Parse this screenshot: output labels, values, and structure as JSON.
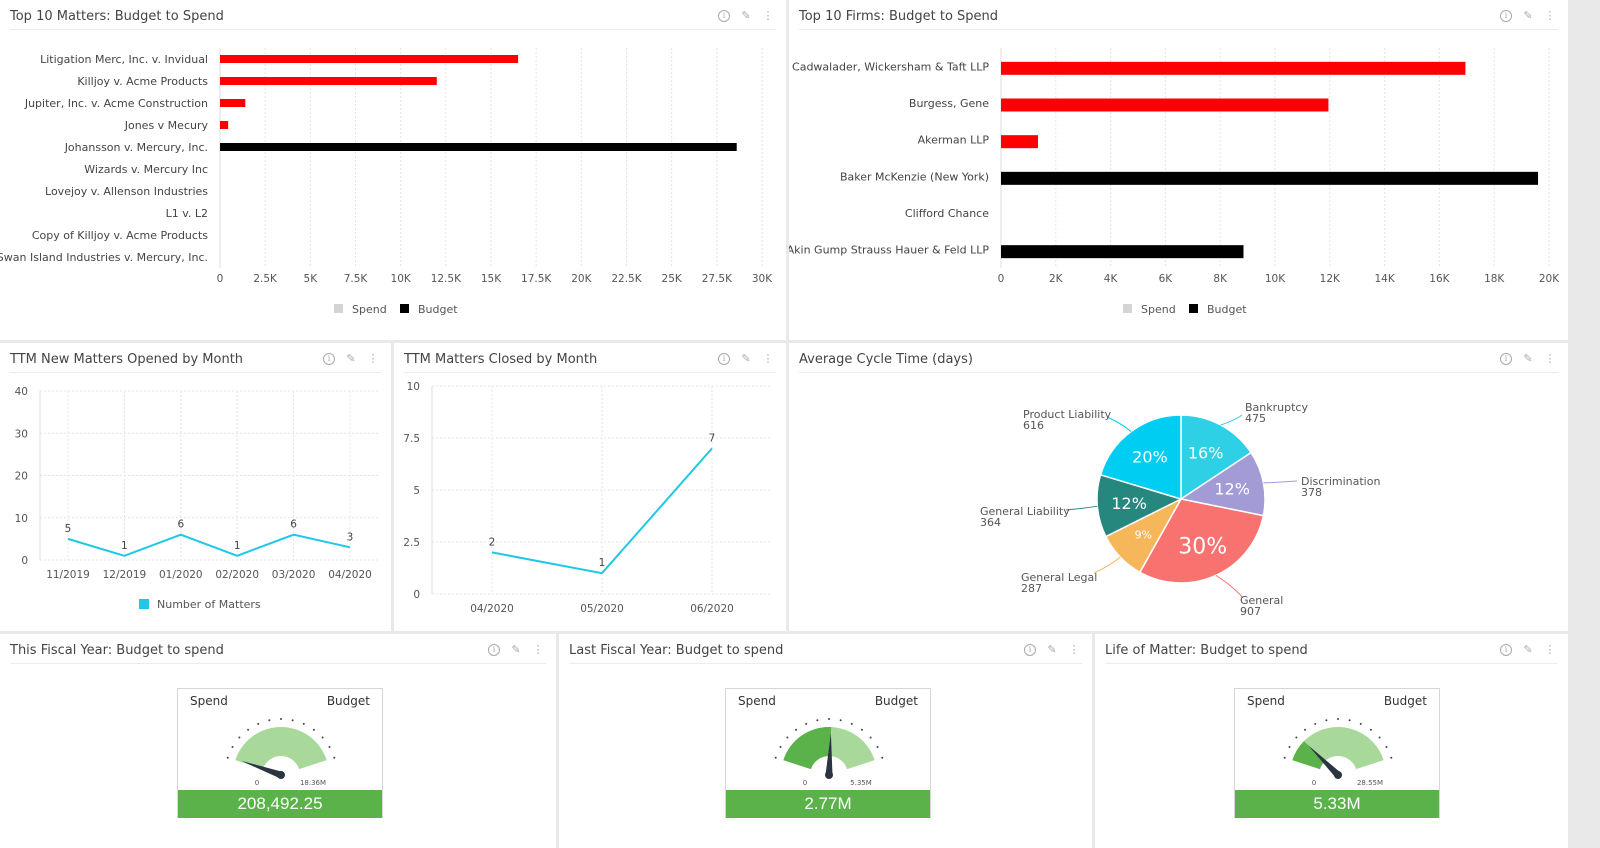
{
  "colors": {
    "spend": "#ff0000",
    "budget": "#000000",
    "line": "#1ec8e6",
    "gauge_fill": "#a8d99a",
    "gauge_spend": "#5cb24a",
    "value_bar": "#5cb24a"
  },
  "icons": [
    "info-icon",
    "pencil-icon",
    "more-vertical-icon"
  ],
  "panels": {
    "top_matters": {
      "title": "Top 10 Matters: Budget to Spend"
    },
    "top_firms": {
      "title": "Top 10 Firms: Budget to Spend"
    },
    "opened": {
      "title": "TTM New Matters Opened by Month"
    },
    "closed": {
      "title": "TTM Matters Closed by Month"
    },
    "cycle": {
      "title": "Average Cycle Time (days)"
    },
    "this_fy": {
      "title": "This Fiscal Year: Budget to spend",
      "spend_label": "Spend",
      "budget_label": "Budget",
      "min": "0",
      "max": "18.36M",
      "value": "208,492.25",
      "ratio": 0.011
    },
    "last_fy": {
      "title": "Last Fiscal Year: Budget to spend",
      "spend_label": "Spend",
      "budget_label": "Budget",
      "min": "0",
      "max": "5.35M",
      "value": "2.77M",
      "ratio": 0.518
    },
    "life": {
      "title": "Life of Matter: Budget to spend",
      "spend_label": "Spend",
      "budget_label": "Budget",
      "min": "0",
      "max": "28.55M",
      "value": "5.33M",
      "ratio": 0.187
    }
  },
  "chart_data": [
    {
      "id": "top_matters",
      "type": "bar",
      "orientation": "horizontal",
      "categories": [
        "Litigation Merc, Inc. v. Invidual",
        "Killjoy v. Acme Products",
        "Jupiter, Inc. v. Acme Construction",
        "Jones v Mecury",
        "Johansson v. Mercury, Inc.",
        "Wizards v. Mercury Inc",
        "Lovejoy v. Allenson Industries",
        "L1 v. L2",
        "Copy of Killjoy v. Acme Products",
        "Swan Island Industries v. Mercury, Inc."
      ],
      "series": [
        {
          "name": "Spend",
          "values": [
            16500,
            12000,
            1400,
            450,
            0,
            0,
            0,
            0,
            0,
            0
          ]
        },
        {
          "name": "Budget",
          "values": [
            0,
            0,
            0,
            0,
            28600,
            0,
            0,
            0,
            0,
            0
          ]
        }
      ],
      "xticks": [
        "0",
        "2.5K",
        "5K",
        "7.5K",
        "10K",
        "12.5K",
        "15K",
        "17.5K",
        "20K",
        "22.5K",
        "25K",
        "27.5K",
        "30K"
      ],
      "xlim": [
        0,
        30000
      ],
      "legend": [
        "Spend",
        "Budget"
      ],
      "legend_position": "bottom",
      "grid": true
    },
    {
      "id": "top_firms",
      "type": "bar",
      "orientation": "horizontal",
      "categories": [
        "Cadwalader, Wickersham & Taft LLP",
        "Burgess, Gene",
        "Akerman LLP",
        "Baker McKenzie (New York)",
        "Clifford Chance",
        "Akin Gump Strauss Hauer & Feld LLP"
      ],
      "series": [
        {
          "name": "Spend",
          "values": [
            16950,
            11950,
            1350,
            0,
            0,
            0
          ]
        },
        {
          "name": "Budget",
          "values": [
            0,
            0,
            0,
            19600,
            0,
            8850
          ]
        }
      ],
      "xticks": [
        "0",
        "2K",
        "4K",
        "6K",
        "8K",
        "10K",
        "12K",
        "14K",
        "16K",
        "18K",
        "20K"
      ],
      "xlim": [
        0,
        20000
      ],
      "legend": [
        "Spend",
        "Budget"
      ],
      "legend_position": "bottom",
      "grid": true
    },
    {
      "id": "opened",
      "type": "line",
      "categories": [
        "11/2019",
        "12/2019",
        "01/2020",
        "02/2020",
        "03/2020",
        "04/2020"
      ],
      "series": [
        {
          "name": "Number of Matters",
          "values": [
            5,
            1,
            6,
            1,
            6,
            3
          ]
        }
      ],
      "data_labels": [
        "5",
        "1",
        "6",
        "1",
        "6",
        "3"
      ],
      "yticks": [
        "0",
        "10",
        "20",
        "30",
        "40"
      ],
      "ylim": [
        0,
        40
      ],
      "legend": [
        "Number of Matters"
      ],
      "legend_position": "bottom",
      "grid": true
    },
    {
      "id": "closed",
      "type": "line",
      "categories": [
        "04/2020",
        "05/2020",
        "06/2020"
      ],
      "series": [
        {
          "values": [
            2,
            1,
            7
          ]
        }
      ],
      "data_labels": [
        "2",
        "1",
        "7"
      ],
      "yticks": [
        "0",
        "2.5",
        "5",
        "7.5",
        "10"
      ],
      "ylim": [
        0,
        10
      ],
      "grid": true
    },
    {
      "id": "cycle",
      "type": "pie",
      "slices": [
        {
          "label": "Bankruptcy",
          "value": 475,
          "pct": "16%",
          "color": "#2ed0e6"
        },
        {
          "label": "Discrimination",
          "value": 378,
          "pct": "12%",
          "color": "#a39bd6"
        },
        {
          "label": "General",
          "value": 907,
          "pct": "30%",
          "color": "#f8726f"
        },
        {
          "label": "General Legal",
          "value": 287,
          "pct": "9%",
          "color": "#f6b75a"
        },
        {
          "label": "General Liability",
          "value": 364,
          "pct": "12%",
          "color": "#26877e"
        },
        {
          "label": "Product Liability",
          "value": 616,
          "pct": "20%",
          "color": "#00cdf2"
        }
      ]
    }
  ]
}
